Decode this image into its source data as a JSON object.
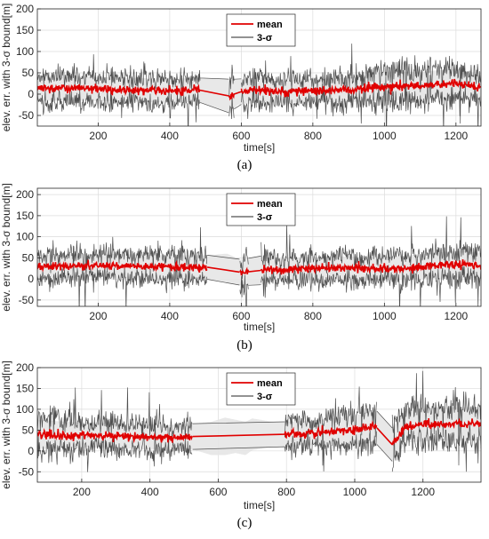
{
  "chart_data": [
    {
      "type": "line",
      "xlabel": "time[s]",
      "ylabel": "elev. err. with 3-σ bound[m]",
      "xlim": [
        30,
        1270
      ],
      "ylim": [
        -75,
        200
      ],
      "xticks": [
        200,
        400,
        600,
        800,
        1000,
        1200
      ],
      "yticks": [
        -50,
        0,
        50,
        100,
        150,
        200
      ],
      "grid": true,
      "legend_placement": "top-center",
      "caption": "(a)",
      "legend": [
        "mean",
        "3-σ"
      ],
      "series": [
        {
          "name": "mean",
          "color": "#e00000",
          "x": [
            30,
            100,
            200,
            300,
            400,
            480,
            570,
            590,
            650,
            700,
            800,
            900,
            1000,
            1100,
            1200,
            1270
          ],
          "y": [
            12,
            15,
            12,
            10,
            8,
            10,
            -5,
            5,
            10,
            5,
            8,
            10,
            18,
            20,
            25,
            15
          ]
        },
        {
          "name": "3-σ",
          "color": "#505050",
          "x": [
            30,
            100,
            200,
            300,
            400,
            480,
            570,
            590,
            650,
            700,
            800,
            900,
            1000,
            1100,
            1200,
            1270
          ],
          "band": [
            28,
            30,
            28,
            28,
            28,
            28,
            40,
            30,
            30,
            25,
            28,
            28,
            35,
            32,
            35,
            28
          ]
        }
      ],
      "gaps": [
        [
          485,
          565
        ],
        [
          580,
          600
        ]
      ]
    },
    {
      "type": "line",
      "xlabel": "time[s]",
      "ylabel": "elev. err. with 3-σ bound[m]",
      "xlim": [
        30,
        1270
      ],
      "ylim": [
        -65,
        215
      ],
      "xticks": [
        200,
        400,
        600,
        800,
        1000,
        1200
      ],
      "yticks": [
        -50,
        0,
        50,
        100,
        150,
        200
      ],
      "grid": true,
      "legend_placement": "top-center",
      "caption": "(b)",
      "legend": [
        "mean",
        "3-σ"
      ],
      "series": [
        {
          "name": "mean",
          "color": "#e00000",
          "x": [
            30,
            100,
            200,
            300,
            400,
            500,
            560,
            600,
            650,
            700,
            800,
            900,
            1000,
            1100,
            1200,
            1270
          ],
          "y": [
            30,
            30,
            32,
            30,
            28,
            28,
            25,
            15,
            20,
            22,
            25,
            25,
            25,
            28,
            35,
            32
          ]
        },
        {
          "name": "3-σ",
          "color": "#505050",
          "x": [
            30,
            100,
            200,
            300,
            400,
            500,
            560,
            600,
            650,
            700,
            800,
            900,
            1000,
            1100,
            1200,
            1270
          ],
          "band": [
            28,
            28,
            28,
            28,
            28,
            28,
            35,
            30,
            35,
            25,
            28,
            28,
            28,
            30,
            32,
            30
          ]
        }
      ],
      "gaps": [
        [
          505,
          595
        ],
        [
          620,
          655
        ]
      ]
    },
    {
      "type": "line",
      "xlabel": "time[s]",
      "ylabel": "elev. err. with 3-σ bound[m]",
      "xlim": [
        70,
        1370
      ],
      "ylim": [
        -75,
        200
      ],
      "xticks": [
        200,
        400,
        600,
        800,
        1000,
        1200
      ],
      "yticks": [
        -50,
        0,
        50,
        100,
        150,
        200
      ],
      "grid": true,
      "legend_placement": "top-center",
      "caption": "(c)",
      "legend": [
        "mean",
        "3-σ"
      ],
      "series": [
        {
          "name": "mean",
          "color": "#e00000",
          "x": [
            70,
            150,
            250,
            350,
            450,
            520,
            580,
            620,
            650,
            680,
            700,
            760,
            800,
            900,
            1000,
            1060,
            1110,
            1150,
            1250,
            1370
          ],
          "y": [
            40,
            38,
            38,
            35,
            32,
            35,
            30,
            35,
            35,
            30,
            40,
            40,
            40,
            45,
            50,
            60,
            15,
            60,
            65,
            65
          ]
        },
        {
          "name": "3-σ",
          "color": "#505050",
          "x": [
            70,
            150,
            250,
            350,
            450,
            520,
            580,
            620,
            650,
            680,
            700,
            760,
            800,
            900,
            1000,
            1060,
            1110,
            1150,
            1250,
            1370
          ],
          "band": [
            35,
            32,
            30,
            30,
            30,
            30,
            40,
            45,
            40,
            40,
            38,
            30,
            30,
            30,
            35,
            40,
            40,
            40,
            40,
            40
          ]
        }
      ],
      "gaps": [
        [
          525,
          795
        ],
        [
          1065,
          1110
        ]
      ]
    }
  ]
}
